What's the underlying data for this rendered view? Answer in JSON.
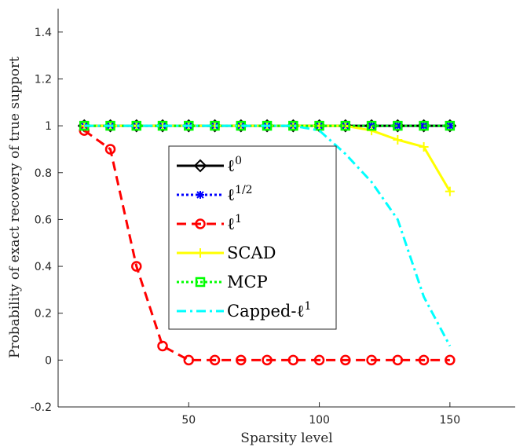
{
  "chart_data": {
    "type": "line",
    "title": "",
    "xlabel": "Sparsity level",
    "ylabel": "Probability of exact recovery of true support",
    "xlim": [
      0,
      175
    ],
    "ylim": [
      -0.2,
      1.5
    ],
    "xticks": [
      50,
      100,
      150
    ],
    "xtick_labels": [
      "50",
      "100",
      "150"
    ],
    "yticks": [
      -0.2,
      0,
      0.2,
      0.4,
      0.6,
      0.8,
      1,
      1.2,
      1.4
    ],
    "ytick_labels": [
      "-0.2",
      "0",
      "0.2",
      "0.4",
      "0.6",
      "0.8",
      "1",
      "1.2",
      "1.4"
    ],
    "grid": false,
    "legend_position": "center",
    "x": [
      10,
      20,
      30,
      40,
      50,
      60,
      70,
      80,
      90,
      100,
      110,
      120,
      130,
      140,
      150
    ],
    "series": [
      {
        "name": "ℓ0",
        "name_base": "ℓ",
        "name_sup": "0",
        "color": "#000000",
        "dash": "",
        "marker": "diamond",
        "values": [
          1,
          1,
          1,
          1,
          1,
          1,
          1,
          1,
          1,
          1,
          1,
          1,
          1,
          1,
          1
        ]
      },
      {
        "name": "ℓ1/2",
        "name_base": "ℓ",
        "name_sup": "1/2",
        "color": "#0000ff",
        "dash": "dotted",
        "marker": "asterisk",
        "values": [
          1,
          1,
          1,
          1,
          1,
          1,
          1,
          1,
          1,
          1,
          1,
          1,
          1,
          1,
          1
        ]
      },
      {
        "name": "ℓ1",
        "name_base": "ℓ",
        "name_sup": "1",
        "color": "#ff0000",
        "dash": "dashed",
        "marker": "circle",
        "values": [
          0.98,
          0.9,
          0.4,
          0.06,
          0,
          0,
          0,
          0,
          0,
          0,
          0,
          0,
          0,
          0,
          0
        ]
      },
      {
        "name": "SCAD",
        "name_base": "SCAD",
        "name_sup": "",
        "color": "#ffff00",
        "dash": "",
        "marker": "plus",
        "values": [
          1,
          1,
          1,
          1,
          1,
          1,
          1,
          1,
          1,
          1,
          1,
          0.98,
          0.94,
          0.91,
          0.72
        ]
      },
      {
        "name": "MCP",
        "name_base": "MCP",
        "name_sup": "",
        "color": "#00ff00",
        "dash": "dotted",
        "marker": "square",
        "values": [
          1,
          1,
          1,
          1,
          1,
          1,
          1,
          1,
          1,
          1,
          1,
          1,
          1,
          1,
          1
        ]
      },
      {
        "name": "Capped-ℓ1",
        "name_base": "Capped-ℓ",
        "name_sup": "1",
        "color": "#00ffff",
        "dash": "dashdot",
        "marker": "none",
        "values": [
          1,
          1,
          1,
          1,
          1,
          1,
          1,
          1,
          1,
          0.98,
          0.88,
          0.76,
          0.6,
          0.27,
          0.06
        ]
      }
    ]
  }
}
